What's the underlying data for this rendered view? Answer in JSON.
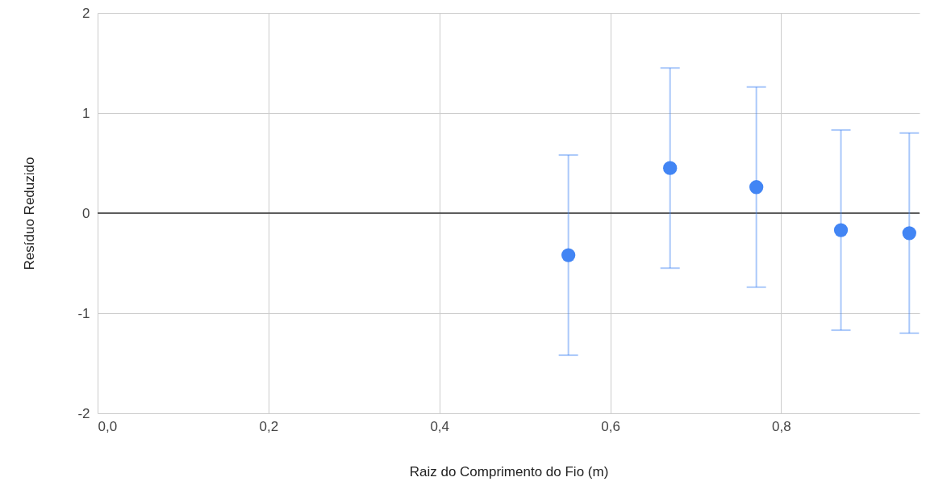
{
  "chart_data": {
    "type": "scatter",
    "xlabel": "Raiz do Comprimento do Fio (m)",
    "ylabel": "Resíduo Reduzido",
    "x": [
      0.551,
      0.67,
      0.771,
      0.87,
      0.95
    ],
    "series": [
      {
        "color": "#4285f4",
        "values": [
          -0.42,
          0.45,
          0.26,
          -0.17,
          -0.2
        ],
        "errors": [
          1,
          1,
          1,
          1,
          1
        ]
      }
    ],
    "xlim": [
      0,
      0.962
    ],
    "ylim": [
      -2,
      2
    ],
    "xticks": [
      {
        "value": 0,
        "label": "0,0"
      },
      {
        "value": 0.2,
        "label": "0,2"
      },
      {
        "value": 0.4,
        "label": "0,4"
      },
      {
        "value": 0.6,
        "label": "0,6"
      },
      {
        "value": 0.8,
        "label": "0,8"
      }
    ],
    "yticks": [
      -2,
      -1,
      0,
      1,
      2
    ],
    "ref_lines": [
      {
        "axis": "y",
        "value": 0,
        "color": "#333333"
      }
    ],
    "grid": true,
    "marker": "circle"
  }
}
